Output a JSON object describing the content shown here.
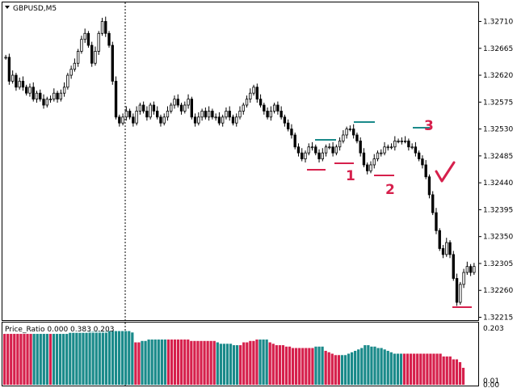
{
  "window": {
    "symbol_label": "GBPUSD,M5",
    "menu_icon": "triangle-down-icon"
  },
  "colors": {
    "bull_bar": "#1a8a8a",
    "bear_bar": "#d6204c",
    "resistance_line": "#1a8a8a",
    "support_line": "#d6204c",
    "annotation": "#d6204c",
    "candle": "#000000"
  },
  "annotations": {
    "label_1": "1",
    "label_2": "2",
    "label_3": "3",
    "signal_mark": "check-mark-icon"
  },
  "chart_data": [
    {
      "type": "candlestick",
      "ylim": [
        1.3221,
        1.3274
      ],
      "yticks": [
        "1.32710",
        "1.32665",
        "1.32620",
        "1.32575",
        "1.32530",
        "1.32485",
        "1.32440",
        "1.32395",
        "1.32350",
        "1.32305",
        "1.32260",
        "1.32215"
      ],
      "close": [
        1.3265,
        1.3261,
        1.3262,
        1.326,
        1.3261,
        1.326,
        1.3259,
        1.326,
        1.3258,
        1.3259,
        1.3258,
        1.3257,
        1.3258,
        1.3258,
        1.3259,
        1.3258,
        1.3259,
        1.326,
        1.3262,
        1.3263,
        1.3264,
        1.3266,
        1.3268,
        1.3269,
        1.3267,
        1.3264,
        1.3266,
        1.3269,
        1.3271,
        1.3269,
        1.3267,
        1.3261,
        1.3255,
        1.3254,
        1.3255,
        1.3256,
        1.3255,
        1.3254,
        1.3256,
        1.3257,
        1.3256,
        1.3255,
        1.3257,
        1.3256,
        1.3255,
        1.3254,
        1.3255,
        1.3256,
        1.3257,
        1.3258,
        1.3257,
        1.3256,
        1.3257,
        1.3258,
        1.3255,
        1.3254,
        1.3255,
        1.3256,
        1.3255,
        1.3256,
        1.3255,
        1.3255,
        1.3254,
        1.3255,
        1.3256,
        1.3255,
        1.3254,
        1.3255,
        1.3256,
        1.3257,
        1.3258,
        1.3259,
        1.326,
        1.3258,
        1.3257,
        1.3256,
        1.3255,
        1.3256,
        1.3257,
        1.3256,
        1.3255,
        1.3254,
        1.3253,
        1.3252,
        1.325,
        1.3249,
        1.3248,
        1.3249,
        1.325,
        1.325,
        1.3249,
        1.3248,
        1.3249,
        1.325,
        1.325,
        1.3249,
        1.325,
        1.3251,
        1.3252,
        1.3253,
        1.3253,
        1.3252,
        1.3251,
        1.3249,
        1.3247,
        1.3246,
        1.3247,
        1.3248,
        1.3249,
        1.3249,
        1.325,
        1.325,
        1.325,
        1.3251,
        1.3251,
        1.3251,
        1.3251,
        1.325,
        1.325,
        1.3249,
        1.3248,
        1.3247,
        1.3245,
        1.3242,
        1.3239,
        1.3236,
        1.3233,
        1.3232,
        1.3234,
        1.3232,
        1.3228,
        1.3224,
        1.3227,
        1.3229,
        1.323,
        1.3229,
        1.323
      ]
    },
    {
      "type": "bar",
      "title": "Price_Ratio 0.000 0.383 0.203",
      "ylim": [
        0.0,
        0.203
      ],
      "yticks": [
        "0.203",
        "0.01",
        "0.00"
      ],
      "values": [
        0.18,
        0.18,
        0.18,
        0.18,
        0.18,
        0.18,
        0.18,
        0.18,
        0.18,
        0.18,
        0.18,
        0.18,
        0.18,
        0.18,
        0.18,
        0.18,
        0.18,
        0.18,
        0.18,
        0.18,
        0.185,
        0.185,
        0.185,
        0.185,
        0.185,
        0.185,
        0.19,
        0.19,
        0.19,
        0.19,
        0.19,
        0.19,
        0.19,
        0.19,
        0.19,
        0.19,
        0.19,
        0.19,
        0.19,
        0.185,
        0.15,
        0.15,
        0.155,
        0.155,
        0.16,
        0.16,
        0.16,
        0.16,
        0.16,
        0.16,
        0.16,
        0.16,
        0.16,
        0.16,
        0.16,
        0.16,
        0.16,
        0.155,
        0.155,
        0.155,
        0.155,
        0.155,
        0.155,
        0.155,
        0.155,
        0.15,
        0.145,
        0.145,
        0.145,
        0.145,
        0.14,
        0.14,
        0.14,
        0.15,
        0.15,
        0.155,
        0.155,
        0.16,
        0.16,
        0.16,
        0.16,
        0.15,
        0.145,
        0.14,
        0.14,
        0.14,
        0.135,
        0.135,
        0.13,
        0.13,
        0.13,
        0.13,
        0.13,
        0.13,
        0.13,
        0.135,
        0.135,
        0.135,
        0.12,
        0.115,
        0.11,
        0.105,
        0.105,
        0.105,
        0.105,
        0.11,
        0.115,
        0.12,
        0.125,
        0.13,
        0.14,
        0.14,
        0.135,
        0.135,
        0.13,
        0.13,
        0.125,
        0.12,
        0.115,
        0.11,
        0.11,
        0.11,
        0.11,
        0.11,
        0.11,
        0.11,
        0.11,
        0.11,
        0.11,
        0.11,
        0.11,
        0.11,
        0.11,
        0.11,
        0.1,
        0.1,
        0.1,
        0.09,
        0.09,
        0.08,
        0.06,
        0.0
      ],
      "colors": [
        "bear",
        "bear",
        "bear",
        "bear",
        "bear",
        "bear",
        "bear",
        "bear",
        "bear",
        "bull",
        "bull",
        "bull",
        "bull",
        "bull",
        "bear",
        "bull",
        "bull",
        "bull",
        "bull",
        "bull",
        "bull",
        "bull",
        "bull",
        "bull",
        "bull",
        "bull",
        "bull",
        "bull",
        "bull",
        "bull",
        "bull",
        "bull",
        "bull",
        "bull",
        "bull",
        "bull",
        "bull",
        "bull",
        "bull",
        "bull",
        "bear",
        "bear",
        "bull",
        "bull",
        "bull",
        "bull",
        "bull",
        "bull",
        "bull",
        "bull",
        "bear",
        "bear",
        "bear",
        "bear",
        "bear",
        "bear",
        "bear",
        "bear",
        "bear",
        "bear",
        "bear",
        "bear",
        "bear",
        "bear",
        "bear",
        "bull",
        "bull",
        "bull",
        "bull",
        "bull",
        "bull",
        "bull",
        "bear",
        "bear",
        "bear",
        "bear",
        "bear",
        "bear",
        "bull",
        "bull",
        "bull",
        "bear",
        "bear",
        "bear",
        "bear",
        "bear",
        "bear",
        "bear",
        "bear",
        "bear",
        "bear",
        "bear",
        "bear",
        "bear",
        "bear",
        "bull",
        "bull",
        "bull",
        "bear",
        "bear",
        "bear",
        "bear",
        "bear",
        "bull",
        "bull",
        "bull",
        "bull",
        "bull",
        "bull",
        "bull",
        "bull",
        "bull",
        "bull",
        "bull",
        "bull",
        "bull",
        "bull",
        "bull",
        "bull",
        "bull",
        "bull",
        "bull",
        "bear",
        "bear",
        "bear",
        "bear",
        "bear",
        "bear",
        "bear",
        "bear",
        "bear",
        "bear",
        "bear",
        "bear",
        "bear",
        "bear",
        "bear",
        "bear",
        "bear",
        "bear",
        "bear",
        "bear",
        "bear",
        "bear",
        "bear"
      ]
    }
  ]
}
